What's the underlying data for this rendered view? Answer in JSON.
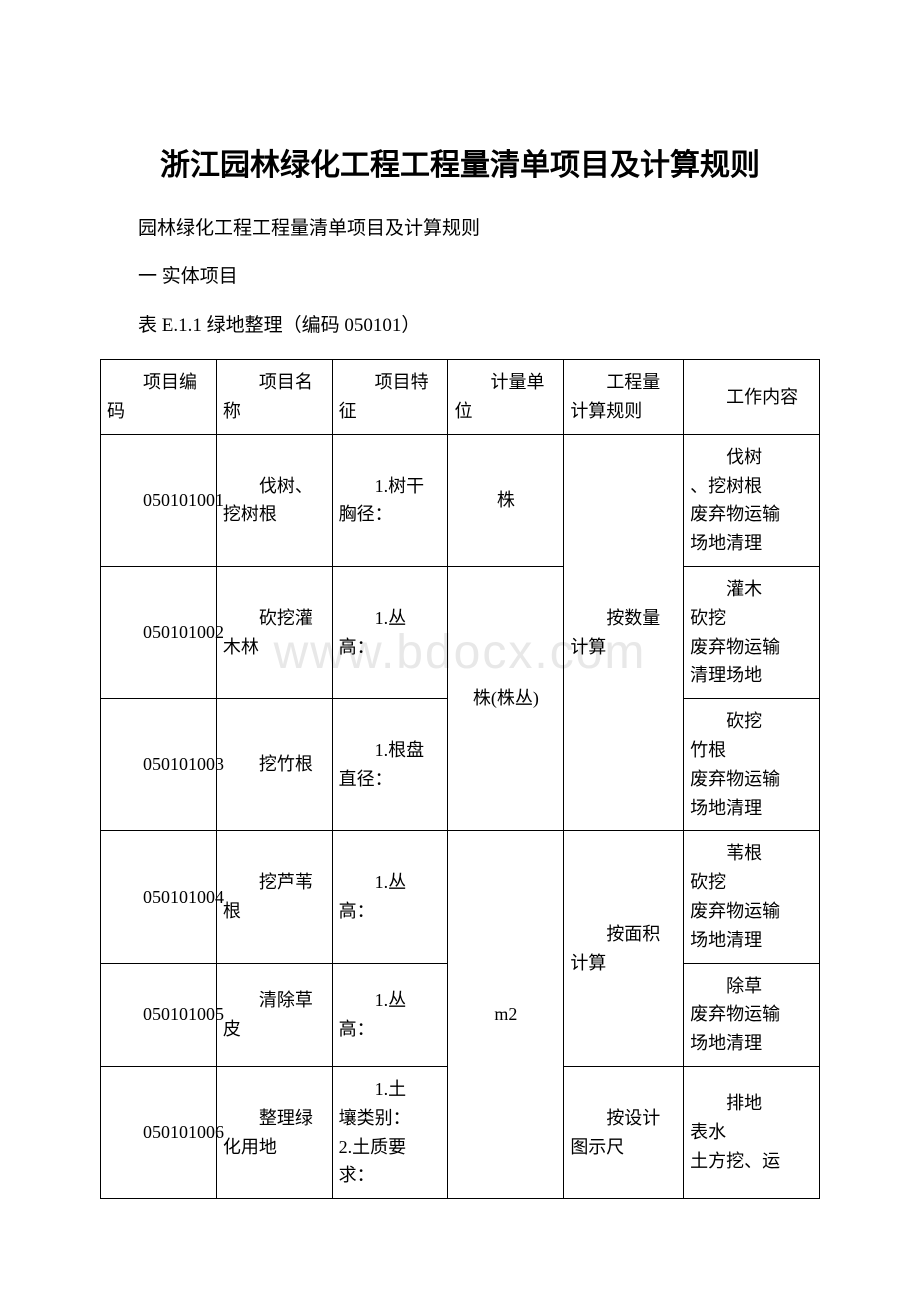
{
  "document": {
    "title": "浙江园林绿化工程工程量清单项目及计算规则",
    "subtitle": "园林绿化工程工程量清单项目及计算规则",
    "section_label": "一  实体项目",
    "table_caption": "表 E.1.1  绿地整理（编码 050101）",
    "watermark": "www.bdocx.com"
  },
  "table": {
    "column_widths": [
      "14.5%",
      "14.5%",
      "14.5%",
      "14.5%",
      "15%",
      "17%"
    ],
    "border_color": "#000000",
    "font_size": 18,
    "headers": {
      "c0": "项目编码",
      "c1": "项目名称",
      "c2": "项目特征",
      "c3": "计量单位",
      "c4": "工程量计算规则",
      "c5": "工作内容"
    },
    "rows": [
      {
        "code": "050101001",
        "name": "伐树、挖树根",
        "feature": "1.树干胸径：",
        "unit": "株",
        "rule": "按数量计算",
        "work_first": "伐树",
        "work_rest": [
          "、挖树根",
          "废弃物运输",
          "场地清理"
        ]
      },
      {
        "code": "050101002",
        "name": "砍挖灌木林",
        "feature": "1.丛高：",
        "unit": "株(株丛)",
        "rule": "",
        "work_first": "灌木",
        "work_rest": [
          "砍挖",
          "废弃物运输",
          "清理场地"
        ]
      },
      {
        "code": "050101003",
        "name": "挖竹根",
        "feature": "1.根盘直径：",
        "unit": "",
        "rule": "",
        "work_first": "砍挖",
        "work_rest": [
          "竹根",
          "废弃物运输",
          "场地清理"
        ]
      },
      {
        "code": "050101004",
        "name": "挖芦苇根",
        "feature": "1.丛高：",
        "unit": "m2",
        "rule": "按面积计算",
        "work_first": "苇根",
        "work_rest": [
          "砍挖",
          "废弃物运输",
          "场地清理"
        ]
      },
      {
        "code": "050101005",
        "name": "清除草皮",
        "feature": "1.丛高：",
        "unit": "",
        "rule": "",
        "work_first": "除草",
        "work_rest": [
          "废弃物运输",
          "场地清理"
        ]
      },
      {
        "code": "050101006",
        "name": "整理绿化用地",
        "feature_first": "1.土",
        "feature_rest": [
          "壤类别：",
          "2.土质要求："
        ],
        "unit": "",
        "rule": "按设计图示尺",
        "work_first": "排地",
        "work_rest": [
          "表水",
          "土方挖、运"
        ]
      }
    ]
  }
}
